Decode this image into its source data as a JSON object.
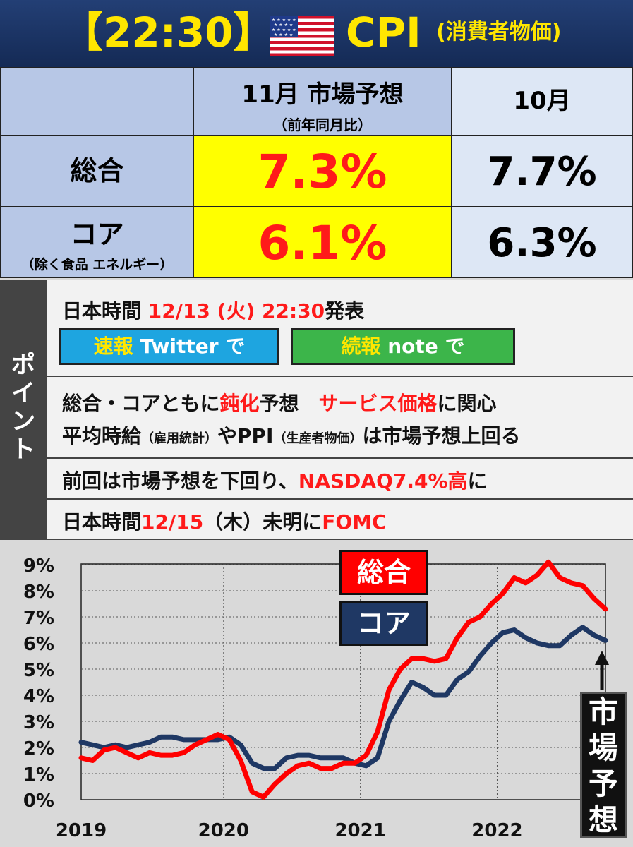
{
  "header": {
    "time_label": "【22:30】",
    "title": "CPI",
    "subtitle": "(消費者物価)",
    "flag_icon": "us-flag-icon"
  },
  "table": {
    "col_forecast": "11月 市場予想",
    "col_forecast_sub": "（前年同月比）",
    "col_prev": "10月",
    "rows": [
      {
        "label": "総合",
        "sublabel": "",
        "forecast": "7.3%",
        "prev": "7.7%"
      },
      {
        "label": "コア",
        "sublabel": "（除く食品 エネルギー）",
        "forecast": "6.1%",
        "prev": "6.3%"
      }
    ]
  },
  "points": {
    "side_label": "ポイント",
    "release_prefix": "日本時間 ",
    "release_time": "12/13 (火) 22:30",
    "release_suffix": "発表",
    "btn_twitter_a": "速報",
    "btn_twitter_b": " Twitter で",
    "btn_note_a": "続報",
    "btn_note_b": " note で",
    "line1_a": "総合・コアともに",
    "line1_b": "鈍化",
    "line1_c": "予想　",
    "line1_d": "サービス価格",
    "line1_e": "に関心",
    "line2_a": "平均時給",
    "line2_b": "（雇用統計）",
    "line2_c": "やPPI",
    "line2_d": "（生産者物価）",
    "line2_e": "は市場予想上回る",
    "line3_a": "前回は市場予想を下回り、",
    "line3_b": "NASDAQ7.4%高",
    "line3_c": "に",
    "line4_a": "日本時間",
    "line4_b": "12/15",
    "line4_c": "（木）未明に",
    "line4_d": "FOMC"
  },
  "colors": {
    "total": "#ff0000",
    "core": "#1f3864",
    "header_bg": "#1a3366",
    "accent_yellow": "#ffe600",
    "twitter": "#1da1f2",
    "note": "#3cb54a"
  },
  "chart_data": {
    "type": "line",
    "x_ticks": [
      "2019",
      "2020",
      "2021",
      "2022"
    ],
    "y_ticks": [
      "0%",
      "1%",
      "2%",
      "3%",
      "4%",
      "5%",
      "6%",
      "7%",
      "8%",
      "9%"
    ],
    "ylim": [
      0,
      9.5
    ],
    "series": [
      {
        "name": "総合",
        "x": [
          "2019-01",
          "2019-02",
          "2019-03",
          "2019-04",
          "2019-05",
          "2019-06",
          "2019-07",
          "2019-08",
          "2019-09",
          "2019-10",
          "2019-11",
          "2019-12",
          "2020-01",
          "2020-02",
          "2020-03",
          "2020-04",
          "2020-05",
          "2020-06",
          "2020-07",
          "2020-08",
          "2020-09",
          "2020-10",
          "2020-11",
          "2020-12",
          "2021-01",
          "2021-02",
          "2021-03",
          "2021-04",
          "2021-05",
          "2021-06",
          "2021-07",
          "2021-08",
          "2021-09",
          "2021-10",
          "2021-11",
          "2021-12",
          "2022-01",
          "2022-02",
          "2022-03",
          "2022-04",
          "2022-05",
          "2022-06",
          "2022-07",
          "2022-08",
          "2022-09",
          "2022-10",
          "2022-11"
        ],
        "values": [
          1.6,
          1.5,
          1.9,
          2.0,
          1.8,
          1.6,
          1.8,
          1.7,
          1.7,
          1.8,
          2.1,
          2.3,
          2.5,
          2.3,
          1.5,
          0.3,
          0.1,
          0.6,
          1.0,
          1.3,
          1.4,
          1.2,
          1.2,
          1.4,
          1.4,
          1.7,
          2.6,
          4.2,
          5.0,
          5.4,
          5.4,
          5.3,
          5.4,
          6.2,
          6.8,
          7.0,
          7.5,
          7.9,
          8.5,
          8.3,
          8.6,
          9.1,
          8.5,
          8.3,
          8.2,
          7.7,
          7.3
        ]
      },
      {
        "name": "コア",
        "x": [
          "2019-01",
          "2019-02",
          "2019-03",
          "2019-04",
          "2019-05",
          "2019-06",
          "2019-07",
          "2019-08",
          "2019-09",
          "2019-10",
          "2019-11",
          "2019-12",
          "2020-01",
          "2020-02",
          "2020-03",
          "2020-04",
          "2020-05",
          "2020-06",
          "2020-07",
          "2020-08",
          "2020-09",
          "2020-10",
          "2020-11",
          "2020-12",
          "2021-01",
          "2021-02",
          "2021-03",
          "2021-04",
          "2021-05",
          "2021-06",
          "2021-07",
          "2021-08",
          "2021-09",
          "2021-10",
          "2021-11",
          "2021-12",
          "2022-01",
          "2022-02",
          "2022-03",
          "2022-04",
          "2022-05",
          "2022-06",
          "2022-07",
          "2022-08",
          "2022-09",
          "2022-10",
          "2022-11"
        ],
        "values": [
          2.2,
          2.1,
          2.0,
          2.1,
          2.0,
          2.1,
          2.2,
          2.4,
          2.4,
          2.3,
          2.3,
          2.3,
          2.3,
          2.4,
          2.1,
          1.4,
          1.2,
          1.2,
          1.6,
          1.7,
          1.7,
          1.6,
          1.6,
          1.6,
          1.4,
          1.3,
          1.6,
          3.0,
          3.8,
          4.5,
          4.3,
          4.0,
          4.0,
          4.6,
          4.9,
          5.5,
          6.0,
          6.4,
          6.5,
          6.2,
          6.0,
          5.9,
          5.9,
          6.3,
          6.6,
          6.3,
          6.1
        ]
      }
    ],
    "legend": [
      "総合",
      "コア"
    ],
    "annotation": "市場予想",
    "grid": true
  }
}
